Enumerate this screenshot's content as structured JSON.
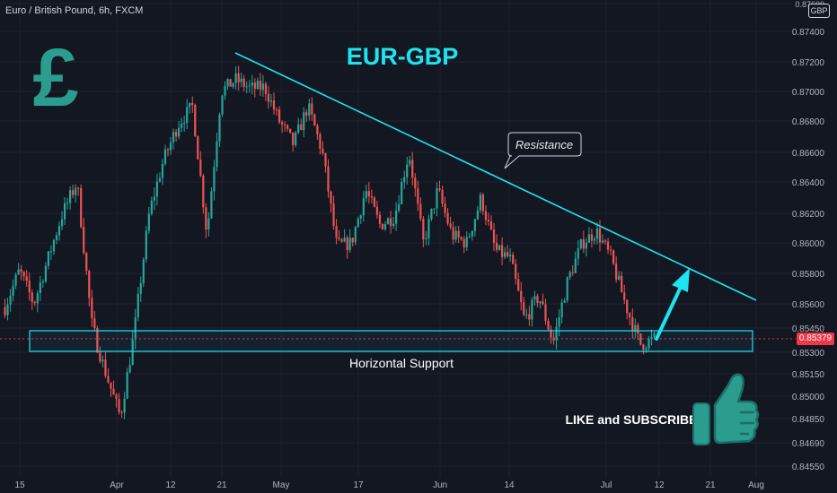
{
  "header": {
    "symbol": "Euro / British Pound, 6h, FXCM",
    "currency": "GBP"
  },
  "price": {
    "current": "0.85379"
  },
  "annotations": {
    "title": "EUR-GBP",
    "resistance": "Resistance",
    "support": "Horizontal Support",
    "cta": "LIKE and SUBSCRIBE",
    "pound_symbol": "£"
  },
  "colors": {
    "background": "#131722",
    "bullish": "#26a69a",
    "bearish": "#ef5350",
    "accent": "#1ee3f0",
    "pound": "#2a9d8f",
    "price_tag": "#f23645"
  },
  "chart_data": {
    "type": "candlestick",
    "xlabel": "",
    "ylabel": "",
    "y_ticks": [
      "0.87600",
      "0.87400",
      "0.87200",
      "0.87000",
      "0.86800",
      "0.86600",
      "0.86400",
      "0.86200",
      "0.86000",
      "0.85800",
      "0.85600",
      "0.85450",
      "0.85300",
      "0.85150",
      "0.85000",
      "0.84850",
      "0.84690",
      "0.84550"
    ],
    "x_ticks": [
      "15",
      "Apr",
      "12",
      "21",
      "May",
      "17",
      "Jun",
      "14",
      "Jul",
      "12",
      "21",
      "Aug"
    ],
    "series": [
      {
        "points": [
          [
            "15",
            0.8558
          ],
          [
            "18",
            0.8582
          ],
          [
            "21",
            0.856
          ],
          [
            "24",
            0.859
          ],
          [
            "27",
            0.862
          ],
          [
            "29",
            0.864
          ],
          [
            "Apr",
            0.8548
          ],
          [
            "4",
            0.8515
          ],
          [
            "6",
            0.8486
          ],
          [
            "8",
            0.8545
          ],
          [
            "10",
            0.862
          ],
          [
            "12",
            0.8655
          ],
          [
            "15",
            0.8678
          ],
          [
            "17",
            0.869
          ],
          [
            "19",
            0.8606
          ],
          [
            "21",
            0.87
          ],
          [
            "24",
            0.8708
          ],
          [
            "27",
            0.8702
          ],
          [
            "May",
            0.8703
          ],
          [
            "4",
            0.868
          ],
          [
            "6",
            0.8665
          ],
          [
            "8",
            0.869
          ],
          [
            "11",
            0.866
          ],
          [
            "14",
            0.8598
          ],
          [
            "17",
            0.86
          ],
          [
            "20",
            0.8635
          ],
          [
            "23",
            0.8612
          ],
          [
            "26",
            0.8618
          ],
          [
            "29",
            0.866
          ],
          [
            "Jun",
            0.86
          ],
          [
            "4",
            0.8635
          ],
          [
            "7",
            0.8605
          ],
          [
            "10",
            0.86
          ],
          [
            "13",
            0.863
          ],
          [
            "14",
            0.8595
          ],
          [
            "17",
            0.859
          ],
          [
            "20",
            0.855
          ],
          [
            "23",
            0.8565
          ],
          [
            "26",
            0.8536
          ],
          [
            "29",
            0.8575
          ],
          [
            "Jul",
            0.86
          ],
          [
            "4",
            0.8608
          ],
          [
            "6",
            0.859
          ],
          [
            "8",
            0.856
          ],
          [
            "10",
            0.8535
          ],
          [
            "12",
            0.8538
          ]
        ]
      }
    ],
    "resistance_line": {
      "start": [
        "Mar 25",
        0.8722
      ],
      "end": [
        "Jul 28",
        0.8563
      ]
    },
    "support_zone": {
      "low": 0.8529,
      "high": 0.8544
    },
    "current_price": 0.85379
  }
}
